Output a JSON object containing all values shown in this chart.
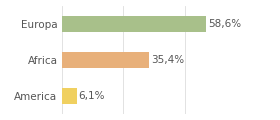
{
  "categories": [
    "Europa",
    "Africa",
    "America"
  ],
  "values": [
    58.6,
    35.4,
    6.1
  ],
  "labels": [
    "58,6%",
    "35,4%",
    "6,1%"
  ],
  "bar_colors": [
    "#a8c08a",
    "#e8b07a",
    "#f0d060"
  ],
  "xlim": [
    0,
    75
  ],
  "background_color": "#ffffff",
  "label_fontsize": 7.5,
  "tick_fontsize": 7.5,
  "bar_height": 0.45,
  "grid_color": "#dddddd",
  "text_color": "#555555"
}
